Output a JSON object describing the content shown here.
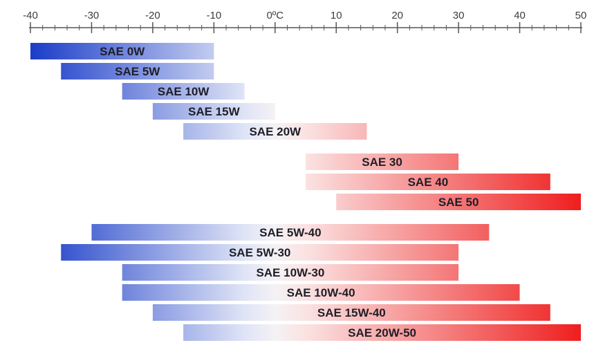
{
  "chart_data": {
    "type": "bar",
    "orientation": "horizontal-range",
    "title": "",
    "xlabel": "",
    "ylabel": "",
    "x_unit": "°C",
    "xlim": [
      -40,
      50
    ],
    "x_ticks_major": [
      -40,
      -30,
      -20,
      -10,
      0,
      10,
      20,
      30,
      40,
      50
    ],
    "x_tick_labels": [
      "-40",
      "-30",
      "-20",
      "-10",
      "0ºC",
      "10",
      "20",
      "30",
      "40",
      "50"
    ],
    "x_tick_minor_step": 2,
    "grid": false,
    "legend": "none",
    "colors": {
      "cold": "#1a3cc8",
      "cold_light": "#dfe4f6",
      "hot_light": "#fbe2e2",
      "hot": "#ef1e1e",
      "axis": "#555555"
    },
    "gradient_domain": [
      -40,
      50
    ],
    "gradient_light_range": [
      -5,
      5
    ],
    "groups": [
      {
        "bars": [
          {
            "label": "SAE 0W",
            "min": -40,
            "max": -10
          },
          {
            "label": "SAE 5W",
            "min": -35,
            "max": -10
          },
          {
            "label": "SAE 10W",
            "min": -25,
            "max": -5
          },
          {
            "label": "SAE 15W",
            "min": -20,
            "max": 0
          },
          {
            "label": "SAE 20W",
            "min": -15,
            "max": 15
          }
        ]
      },
      {
        "bars": [
          {
            "label": "SAE 30",
            "min": 5,
            "max": 30
          },
          {
            "label": "SAE 40",
            "min": 5,
            "max": 45
          },
          {
            "label": "SAE 50",
            "min": 10,
            "max": 50
          }
        ]
      },
      {
        "bars": [
          {
            "label": "SAE 5W-40",
            "min": -30,
            "max": 35
          },
          {
            "label": "SAE 5W-30",
            "min": -35,
            "max": 30
          },
          {
            "label": "SAE 10W-30",
            "min": -25,
            "max": 30
          },
          {
            "label": "SAE 10W-40",
            "min": -25,
            "max": 40
          },
          {
            "label": "SAE 15W-40",
            "min": -20,
            "max": 45
          },
          {
            "label": "SAE 20W-50",
            "min": -15,
            "max": 50
          }
        ]
      }
    ]
  }
}
